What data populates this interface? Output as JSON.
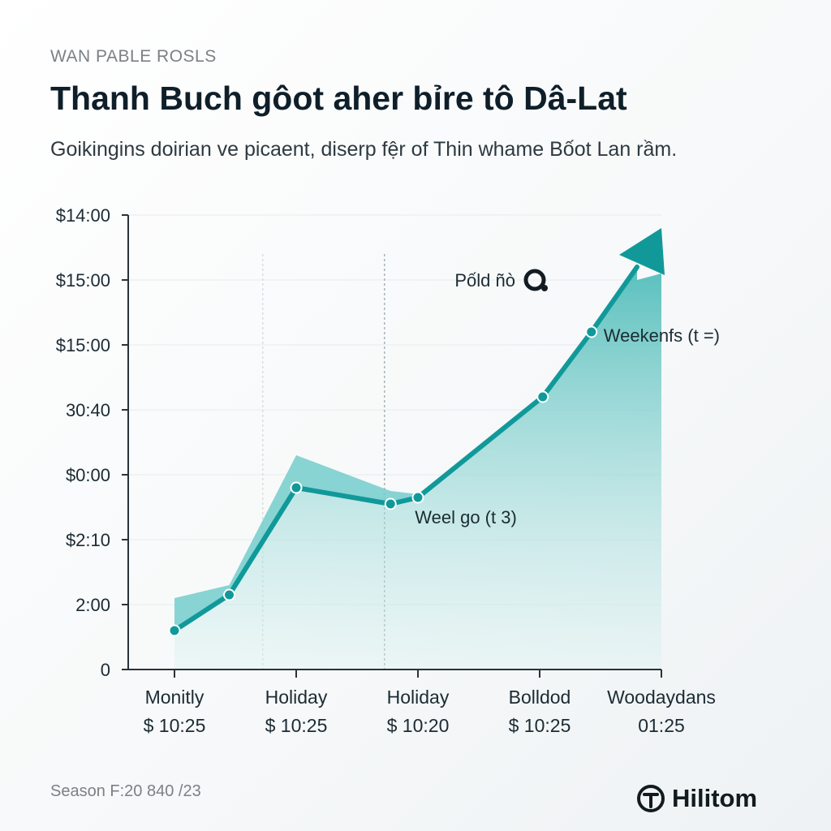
{
  "header": {
    "kicker": "WAN PABLE ROSLS",
    "title": "Thanh Buch gôot aher bỉre tô Dâ-Lat",
    "subtitle": "Goikingins doirian ve picaent, diserp fệr of Thin whame Bốot Lan rầm."
  },
  "chart_data": {
    "type": "area",
    "title": "Thanh Buch gôot aher bỉre tô Dâ-Lat",
    "y_tick_labels": [
      "0",
      "2:00",
      "$2:10",
      "$0:00",
      "30:40",
      "$15:00",
      "$15:00",
      "$14:00"
    ],
    "ylim": [
      0,
      7
    ],
    "x_range": [
      0,
      8
    ],
    "categories": [
      {
        "label": "Monitly",
        "sublabel": "$ 10:25",
        "x": 0
      },
      {
        "label": "Holiday",
        "sublabel": "$ 10:25",
        "x": 2
      },
      {
        "label": "Holiday",
        "sublabel": "$ 10:20",
        "x": 4
      },
      {
        "label": "Bolldod",
        "sublabel": "$ 10:25",
        "x": 6
      },
      {
        "label": "Woodaydans",
        "sublabel": "01:25",
        "x": 8
      }
    ],
    "series": [
      {
        "name": "main",
        "points": [
          {
            "x": 0,
            "y": 0.6
          },
          {
            "x": 0.9,
            "y": 1.15
          },
          {
            "x": 2.0,
            "y": 2.8
          },
          {
            "x": 3.55,
            "y": 2.55
          },
          {
            "x": 4.0,
            "y": 2.65
          },
          {
            "x": 6.05,
            "y": 4.2
          },
          {
            "x": 6.85,
            "y": 5.2
          },
          {
            "x": 7.6,
            "y": 6.2
          }
        ]
      }
    ],
    "band": [
      {
        "x": 0,
        "y": 1.1
      },
      {
        "x": 0.9,
        "y": 1.3
      },
      {
        "x": 2.0,
        "y": 3.3
      },
      {
        "x": 3.55,
        "y": 2.75
      },
      {
        "x": 4.0,
        "y": 2.7
      }
    ],
    "vertical_lines": [
      1.45,
      3.45
    ],
    "annotations": [
      {
        "text": "Pốld ñò",
        "x": 5.6,
        "y": 5.9
      },
      {
        "text": "Weekenfs (t =)",
        "x": 7.05,
        "y": 5.05
      },
      {
        "text": "Weel go (t 3)",
        "x": 3.95,
        "y": 2.25
      }
    ],
    "colors": {
      "line": "#11999a",
      "fill": "#5cc4c2",
      "band": "#74cdcb",
      "axis": "#2a3338"
    }
  },
  "footer": {
    "season": "Season F:20 840 /23",
    "brand": "Hilitom"
  }
}
